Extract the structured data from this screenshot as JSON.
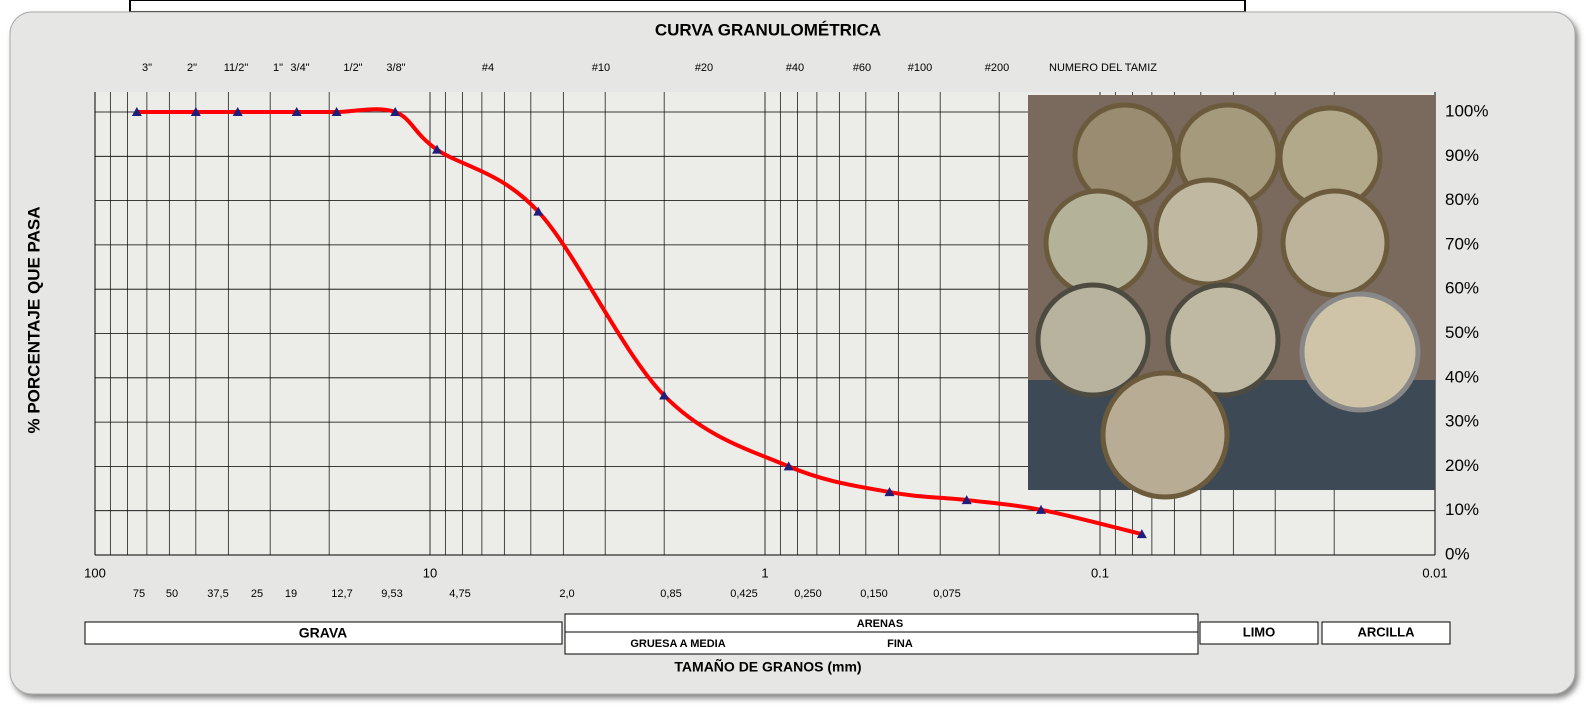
{
  "chart_data": {
    "type": "line",
    "title": "CURVA GRANULOMÉTRICA",
    "xlabel": "TAMAÑO DE GRANOS (mm)",
    "ylabel": "% PORCENTAJE QUE PASA",
    "x": [
      75,
      50,
      37.5,
      25,
      19,
      12.7,
      9.53,
      4.75,
      2.0,
      0.85,
      0.425,
      0.25,
      0.15,
      0.075
    ],
    "values": [
      100,
      100,
      100,
      100,
      100,
      100,
      91.5,
      77.5,
      36,
      20,
      14.2,
      12.4,
      10.2,
      4.7
    ],
    "color": "#ff0000",
    "marker_color": "#1f1f7a",
    "xscale": "log",
    "xreversed": true,
    "xlim": [
      100,
      0.01
    ],
    "xticks": [
      100,
      10,
      1,
      0.1,
      0.01
    ],
    "ylim": [
      0,
      100
    ],
    "yticks": [
      {
        "value": 0,
        "label": "0%"
      },
      {
        "value": 10,
        "label": "10%"
      },
      {
        "value": 20,
        "label": "20%"
      },
      {
        "value": 30,
        "label": "30%"
      },
      {
        "value": 40,
        "label": "40%"
      },
      {
        "value": 50,
        "label": "50%"
      },
      {
        "value": 60,
        "label": "60%"
      },
      {
        "value": 70,
        "label": "70%"
      },
      {
        "value": 80,
        "label": "80%"
      },
      {
        "value": 90,
        "label": "90%"
      },
      {
        "value": 100,
        "label": "100%"
      }
    ],
    "grid": true,
    "sieve_names": [
      "3\"",
      "2\"",
      "11/2\"",
      "1\"",
      "3/4\"",
      "1/2\"",
      "3/8\"",
      "#4",
      "#10",
      "#20",
      "#40",
      "#60",
      "#100",
      "#200"
    ],
    "sieve_header": "NUMERO DEL TAMIZ",
    "sieve_sizes": [
      "75",
      "50",
      "37,5",
      "25",
      "19",
      "12,7",
      "9,53",
      "4,75",
      "2,0",
      "0,85",
      "0,425",
      "0,250",
      "0,150",
      "0,075"
    ],
    "classes": {
      "gravel": "GRAVA",
      "sands": "ARENAS",
      "coarse_medium": "GRUESA A MEDIA",
      "fine": "FINA",
      "silt": "LIMO",
      "clay": "ARCILLA"
    }
  }
}
